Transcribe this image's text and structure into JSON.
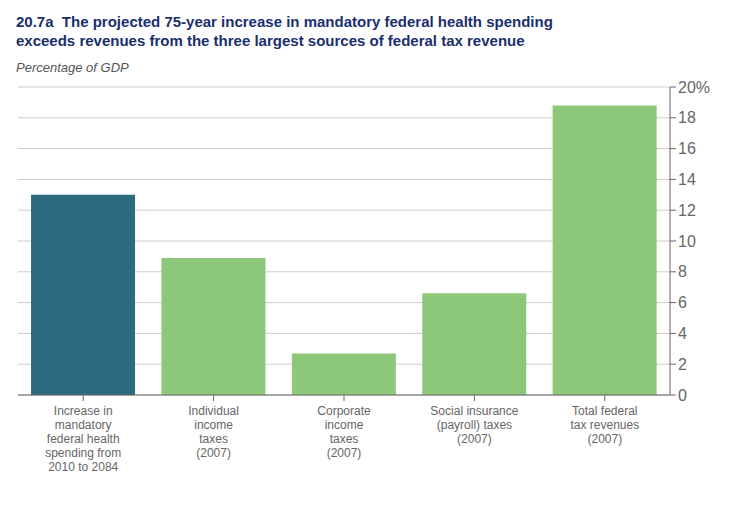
{
  "chart_data": {
    "type": "bar",
    "title": "20.7a  The projected 75-year increase in mandatory federal health spending\nexceeds revenues from the three largest sources of federal tax revenue",
    "y_label": "Percentage of GDP",
    "categories": [
      "Increase in\nmandatory\nfederal health\nspending from\n2010 to 2084",
      "Individual\nincome\ntaxes\n(2007)",
      "Corporate\nincome\ntaxes\n(2007)",
      "Social insurance\n(payroll) taxes\n(2007)",
      "Total federal\ntax revenues\n(2007)"
    ],
    "values": [
      13.0,
      8.9,
      2.7,
      6.6,
      18.8
    ],
    "colors": [
      "#2b6b7f",
      "#8dc87a",
      "#8dc87a",
      "#8dc87a",
      "#8dc87a"
    ],
    "ylim": [
      0,
      20
    ],
    "yticks": [
      0,
      2,
      4,
      6,
      8,
      10,
      12,
      14,
      16,
      18,
      {
        "value": 20,
        "label": "20%"
      }
    ],
    "grid": true
  }
}
